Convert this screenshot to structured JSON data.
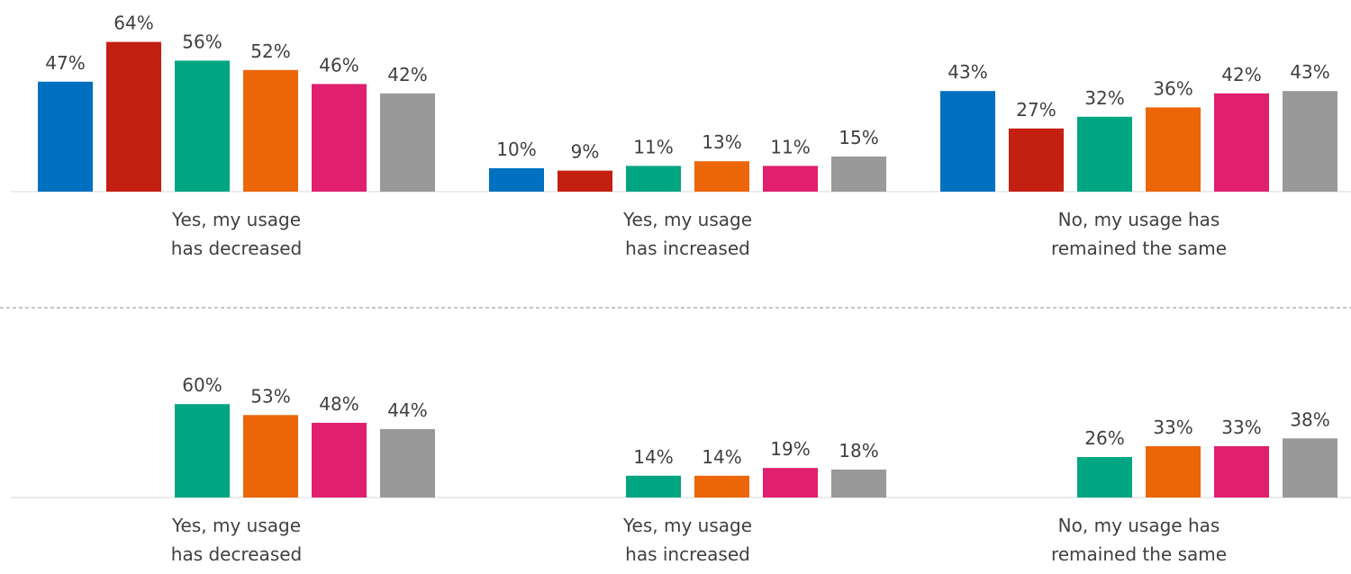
{
  "chart_data": [
    {
      "type": "bar",
      "categories": [
        "Yes, my usage\nhas decreased",
        "Yes, my usage\nhas increased",
        "No, my usage has\nremained the same"
      ],
      "ylim": [
        0,
        80
      ],
      "series": [
        {
          "color": "#0070c0",
          "values": [
            47,
            10,
            43
          ],
          "value_labels": [
            "47%",
            "10%",
            "43%"
          ]
        },
        {
          "color": "#c42011",
          "values": [
            64,
            9,
            27
          ],
          "value_labels": [
            "64%",
            "9%",
            "27%"
          ]
        },
        {
          "color": "#00a582",
          "values": [
            56,
            11,
            32
          ],
          "value_labels": [
            "56%",
            "11%",
            "32%"
          ]
        },
        {
          "color": "#ec6608",
          "values": [
            52,
            13,
            36
          ],
          "value_labels": [
            "52%",
            "13%",
            "36%"
          ]
        },
        {
          "color": "#e01f6e",
          "values": [
            46,
            11,
            42
          ],
          "value_labels": [
            "46%",
            "11%",
            "42%"
          ]
        },
        {
          "color": "#999999",
          "values": [
            42,
            15,
            43
          ],
          "value_labels": [
            "42%",
            "15%",
            "43%"
          ]
        }
      ]
    },
    {
      "type": "bar",
      "categories": [
        "Yes, my usage\nhas decreased",
        "Yes, my usage\nhas increased",
        "No, my usage has\nremained the same"
      ],
      "ylim": [
        0,
        100
      ],
      "series": [
        {
          "color": "#00a582",
          "values": [
            60,
            14,
            26
          ],
          "value_labels": [
            "60%",
            "14%",
            "26%"
          ]
        },
        {
          "color": "#ec6608",
          "values": [
            53,
            14,
            33
          ],
          "value_labels": [
            "53%",
            "14%",
            "33%"
          ]
        },
        {
          "color": "#e01f6e",
          "values": [
            48,
            19,
            33
          ],
          "value_labels": [
            "48%",
            "19%",
            "33%"
          ]
        },
        {
          "color": "#999999",
          "values": [
            44,
            18,
            38
          ],
          "value_labels": [
            "44%",
            "18%",
            "38%"
          ]
        }
      ]
    }
  ]
}
